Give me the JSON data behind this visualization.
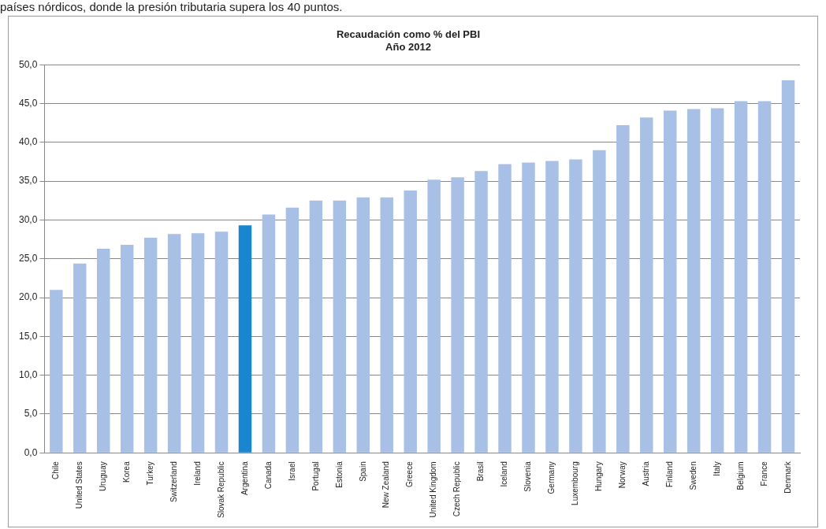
{
  "chart_data": {
    "type": "bar",
    "title": [
      "Recaudación como % del PBI",
      "Año 2012"
    ],
    "annotations": [
      "países nórdicos, donde la presión tributaria supera los 40 puntos."
    ],
    "categories": [
      "Chile",
      "United States",
      "Uruguay",
      "Korea",
      "Turkey",
      "Switzerland",
      "Ireland",
      "Slovak Republic",
      "Argentina",
      "Canada",
      "Israel",
      "Portugal",
      "Estonia",
      "Spain",
      "New Zealand",
      "Greece",
      "United Kingdom",
      "Czech Republic",
      "Brasil",
      "Iceland",
      "Slovenia",
      "Germany",
      "Luxembourg",
      "Hungary",
      "Norway",
      "Austria",
      "Finland",
      "Sweden",
      "Italy",
      "Belgium",
      "France",
      "Denmark"
    ],
    "values": [
      21.0,
      24.4,
      26.3,
      26.8,
      27.7,
      28.2,
      28.3,
      28.5,
      29.3,
      30.7,
      31.6,
      32.5,
      32.5,
      32.9,
      32.9,
      33.8,
      35.2,
      35.5,
      36.3,
      37.2,
      37.4,
      37.6,
      37.8,
      39.0,
      42.2,
      43.2,
      44.1,
      44.3,
      44.4,
      45.3,
      45.3,
      48.0
    ],
    "colors": [
      "#a9c0e6",
      "#a9c0e6",
      "#a9c0e6",
      "#a9c0e6",
      "#a9c0e6",
      "#a9c0e6",
      "#a9c0e6",
      "#a9c0e6",
      "#1a86d0",
      "#a9c0e6",
      "#a9c0e6",
      "#a9c0e6",
      "#a9c0e6",
      "#a9c0e6",
      "#a9c0e6",
      "#a9c0e6",
      "#a9c0e6",
      "#a9c0e6",
      "#a9c0e6",
      "#a9c0e6",
      "#a9c0e6",
      "#a9c0e6",
      "#a9c0e6",
      "#a9c0e6",
      "#a9c0e6",
      "#a9c0e6",
      "#a9c0e6",
      "#a9c0e6",
      "#a9c0e6",
      "#a9c0e6",
      "#a9c0e6",
      "#a9c0e6"
    ],
    "ylim": [
      0,
      50
    ],
    "yticks": [
      {
        "value": 0,
        "label": "0,0"
      },
      {
        "value": 5,
        "label": "5,0"
      },
      {
        "value": 10,
        "label": "10,0"
      },
      {
        "value": 15,
        "label": "15,0"
      },
      {
        "value": 20,
        "label": "20,0"
      },
      {
        "value": 25,
        "label": "25,0"
      },
      {
        "value": 30,
        "label": "30,0"
      },
      {
        "value": 35,
        "label": "35,0"
      },
      {
        "value": 40,
        "label": "40,0"
      },
      {
        "value": 45,
        "label": "45,0"
      },
      {
        "value": 50,
        "label": "50,0"
      }
    ],
    "grid": "y",
    "legend": false
  }
}
